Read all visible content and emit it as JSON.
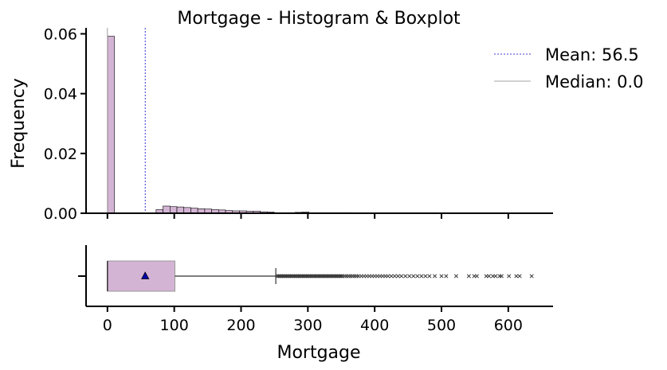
{
  "chart_data": [
    {
      "type": "histogram",
      "title": "Mortgage - Histogram & Boxplot",
      "ylabel": "Frequency",
      "xlim": [
        -32,
        667
      ],
      "ylim": [
        0,
        0.062
      ],
      "yticks": [
        0.0,
        0.02,
        0.04,
        0.06
      ],
      "ytick_labels": [
        "0.00",
        "0.02",
        "0.04",
        "0.06"
      ],
      "grid": false,
      "legend_position": "top-right",
      "bar_color": "#d4b4d4",
      "bin_width": 10.4,
      "bins": [
        {
          "x0": 0,
          "density": 0.0592
        },
        {
          "x0": 72.8,
          "density": 0.0012
        },
        {
          "x0": 83.2,
          "density": 0.0024
        },
        {
          "x0": 93.6,
          "density": 0.0022
        },
        {
          "x0": 104.0,
          "density": 0.0021
        },
        {
          "x0": 114.4,
          "density": 0.0019
        },
        {
          "x0": 124.8,
          "density": 0.0017
        },
        {
          "x0": 135.2,
          "density": 0.0015
        },
        {
          "x0": 145.6,
          "density": 0.0014
        },
        {
          "x0": 156.0,
          "density": 0.0012
        },
        {
          "x0": 166.4,
          "density": 0.0011
        },
        {
          "x0": 176.8,
          "density": 0.0009
        },
        {
          "x0": 187.2,
          "density": 0.0008
        },
        {
          "x0": 197.6,
          "density": 0.0008
        },
        {
          "x0": 208.0,
          "density": 0.0007
        },
        {
          "x0": 218.4,
          "density": 0.0007
        },
        {
          "x0": 228.8,
          "density": 0.0005
        },
        {
          "x0": 239.2,
          "density": 0.0004
        },
        {
          "x0": 249.6,
          "density": 0.0002
        },
        {
          "x0": 260.0,
          "density": 0.0002
        },
        {
          "x0": 270.4,
          "density": 0.0002
        },
        {
          "x0": 280.8,
          "density": 0.0003
        },
        {
          "x0": 291.2,
          "density": 0.0004
        },
        {
          "x0": 301.6,
          "density": 0.0002
        },
        {
          "x0": 312.0,
          "density": 0.0002
        },
        {
          "x0": 322.4,
          "density": 0.0002
        },
        {
          "x0": 332.8,
          "density": 0.0002
        },
        {
          "x0": 343.2,
          "density": 0.0002
        },
        {
          "x0": 353.6,
          "density": 0.0002
        },
        {
          "x0": 364.0,
          "density": 0.0001
        },
        {
          "x0": 374.4,
          "density": 0.0001
        },
        {
          "x0": 395.2,
          "density": 0.0001
        },
        {
          "x0": 426.4,
          "density": 0.0001
        },
        {
          "x0": 468.0,
          "density": 0.0001
        },
        {
          "x0": 509.6,
          "density": 0.0001
        },
        {
          "x0": 571.6,
          "density": 0.0001
        }
      ],
      "lines": [
        {
          "name": "Mean: 56.5",
          "x": 56.5,
          "color": "#0000cc",
          "style": "dashed"
        },
        {
          "name": "Median: 0.0",
          "x": 0.0,
          "color": "#888888",
          "style": "solid"
        }
      ]
    },
    {
      "type": "boxplot",
      "xlabel": "Mortgage",
      "xticks": [
        0,
        100,
        200,
        300,
        400,
        500,
        600
      ],
      "xtick_labels": [
        "0",
        "100",
        "200",
        "300",
        "400",
        "500",
        "600"
      ],
      "box_color": "#d4b4d4",
      "min": 0,
      "q1": 0,
      "median": 0,
      "q3": 101,
      "whisker_high": 252,
      "mean": 56.5,
      "outliers": [
        254,
        256,
        258,
        260,
        262,
        264,
        266,
        268,
        270,
        272,
        274,
        276,
        278,
        280,
        282,
        284,
        286,
        288,
        290,
        292,
        294,
        296,
        298,
        300,
        302,
        304,
        306,
        308,
        310,
        312,
        314,
        316,
        318,
        320,
        322,
        324,
        326,
        328,
        330,
        332,
        334,
        336,
        338,
        340,
        342,
        344,
        346,
        348,
        350,
        352,
        355,
        358,
        361,
        364,
        367,
        370,
        373,
        376,
        380,
        384,
        388,
        392,
        396,
        400,
        404,
        408,
        412,
        416,
        420,
        425,
        430,
        435,
        440,
        446,
        452,
        458,
        464,
        470,
        476,
        482,
        490,
        500,
        507,
        522,
        541,
        549,
        553,
        567,
        571,
        577,
        581,
        587,
        590,
        601,
        612,
        617,
        635
      ]
    }
  ]
}
